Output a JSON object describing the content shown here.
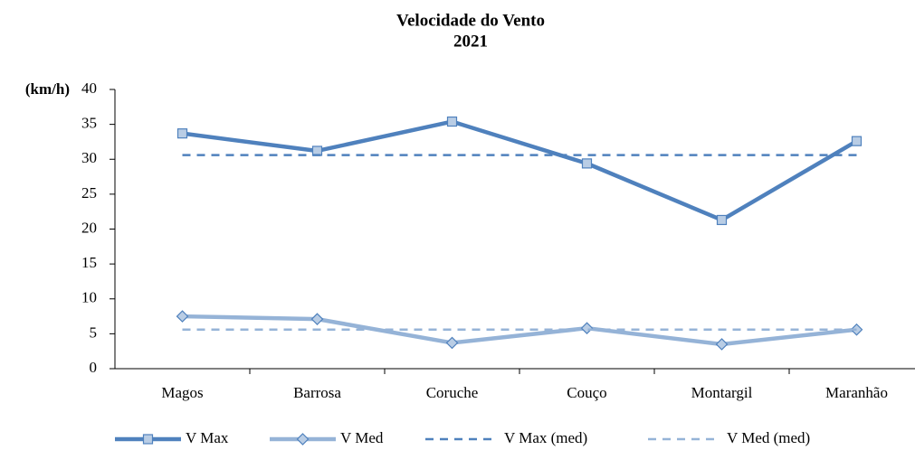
{
  "chart_data": {
    "type": "line",
    "title": "Velocidade do Vento",
    "subtitle": "2021",
    "y_label": "(km/h)",
    "categories": [
      "Magos",
      "Barrosa",
      "Coruche",
      "Couço",
      "Montargil",
      "Maranhão"
    ],
    "series": [
      {
        "name": "V Max",
        "color": "#4f81bd",
        "marker_fill": "#b9cde5",
        "marker": "square",
        "dashed": false,
        "values": [
          33.7,
          31.2,
          35.4,
          29.4,
          21.3,
          32.6
        ]
      },
      {
        "name": "V Med",
        "color": "#95b3d7",
        "marker_fill": "#b9cde5",
        "marker": "diamond",
        "dashed": false,
        "values": [
          7.5,
          7.1,
          3.7,
          5.8,
          3.5,
          5.6
        ]
      },
      {
        "name": "V Max (med)",
        "color": "#4f81bd",
        "marker": "none",
        "dashed": true,
        "values": [
          30.6,
          30.6,
          30.6,
          30.6,
          30.6,
          30.6
        ]
      },
      {
        "name": "V Med (med)",
        "color": "#95b3d7",
        "marker": "none",
        "dashed": true,
        "values": [
          5.6,
          5.6,
          5.6,
          5.6,
          5.6,
          5.6
        ]
      }
    ],
    "ylim": [
      0,
      40
    ],
    "yticks": [
      0,
      5,
      10,
      15,
      20,
      25,
      30,
      35,
      40
    ],
    "grid": false,
    "legend": "bottom"
  }
}
